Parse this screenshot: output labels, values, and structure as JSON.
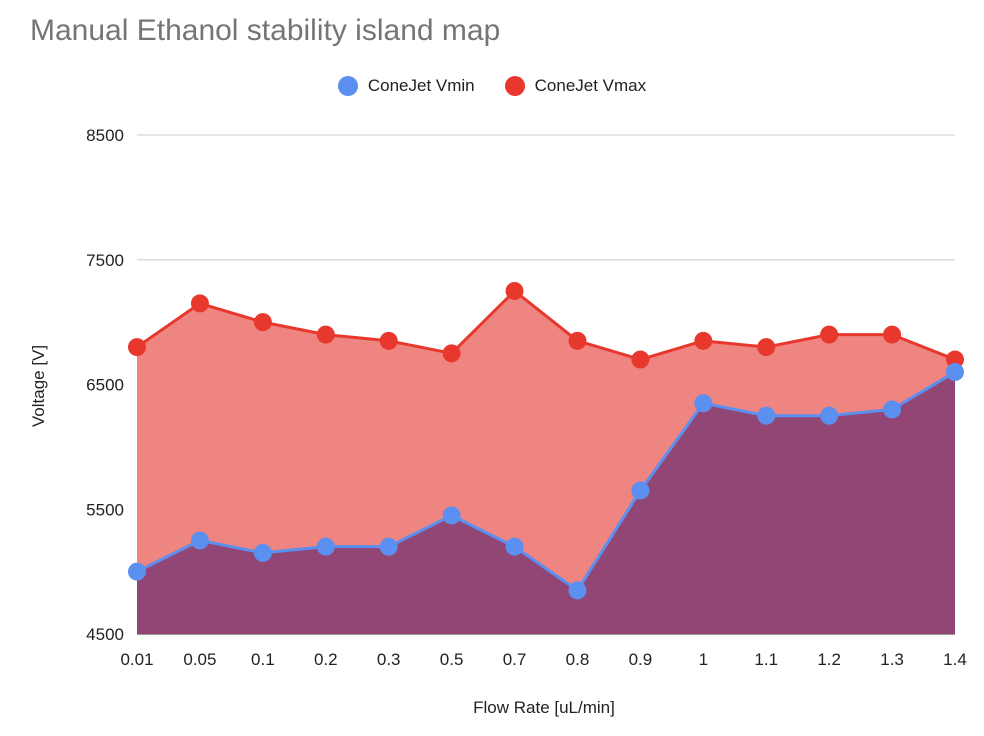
{
  "chart_data": {
    "type": "area",
    "title": "Manual Ethanol stability island map",
    "xlabel": "Flow Rate [uL/min]",
    "ylabel": "Voltage [V]",
    "categories": [
      "0.01",
      "0.05",
      "0.1",
      "0.2",
      "0.3",
      "0.5",
      "0.7",
      "0.8",
      "0.9",
      "1",
      "1.1",
      "1.2",
      "1.3",
      "1.4"
    ],
    "ylim": [
      4500,
      8500
    ],
    "yticks": [
      "8500",
      "7500",
      "6500",
      "5500",
      "4500"
    ],
    "grid": true,
    "legend_position": "top",
    "series": [
      {
        "name": "ConeJet Vmin",
        "color": "#5b8ff0",
        "fill": "#924676",
        "values": [
          5000,
          5250,
          5150,
          5200,
          5200,
          5450,
          5200,
          4850,
          5650,
          6350,
          6250,
          6250,
          6300,
          6600
        ]
      },
      {
        "name": "ConeJet Vmax",
        "color": "#e8382d",
        "fill": "#ee8580",
        "values": [
          6800,
          7150,
          7000,
          6900,
          6850,
          6750,
          7250,
          6850,
          6700,
          6850,
          6800,
          6900,
          6900,
          6700
        ]
      }
    ]
  }
}
